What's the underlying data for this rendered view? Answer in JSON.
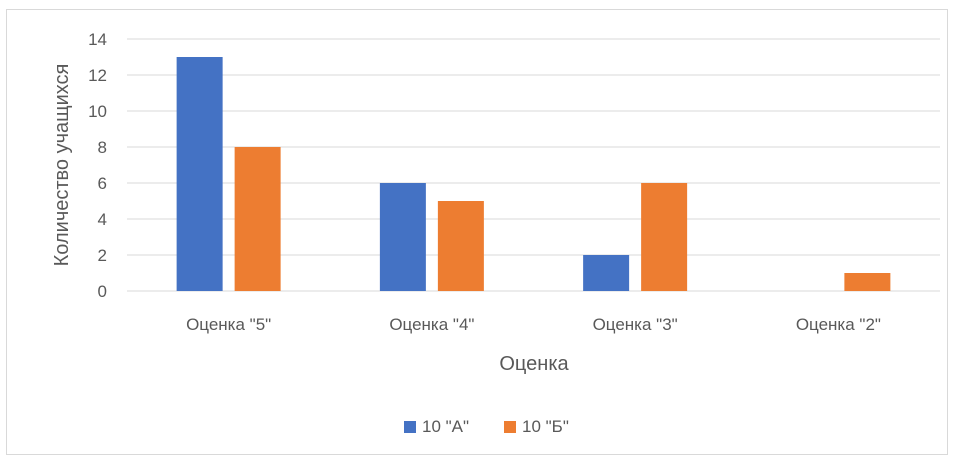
{
  "chart_data": {
    "type": "bar",
    "title": "",
    "xlabel": "Оценка",
    "ylabel": "Количество учащихся",
    "categories": [
      "Оценка \"5\"",
      "Оценка \"4\"",
      "Оценка \"3\"",
      "Оценка \"2\""
    ],
    "series": [
      {
        "name": "10 \"А\"",
        "values": [
          13,
          6,
          2,
          0
        ],
        "color": "#4472C4"
      },
      {
        "name": "10 \"Б\"",
        "values": [
          8,
          5,
          6,
          1
        ],
        "color": "#ED7D31"
      }
    ],
    "ylim": [
      0,
      14
    ],
    "yticks": [
      0,
      2,
      4,
      6,
      8,
      10,
      12,
      14
    ],
    "grid": true,
    "legend": "bottom",
    "gridline_color": "#d9d9d9",
    "text_color": "#595959"
  }
}
